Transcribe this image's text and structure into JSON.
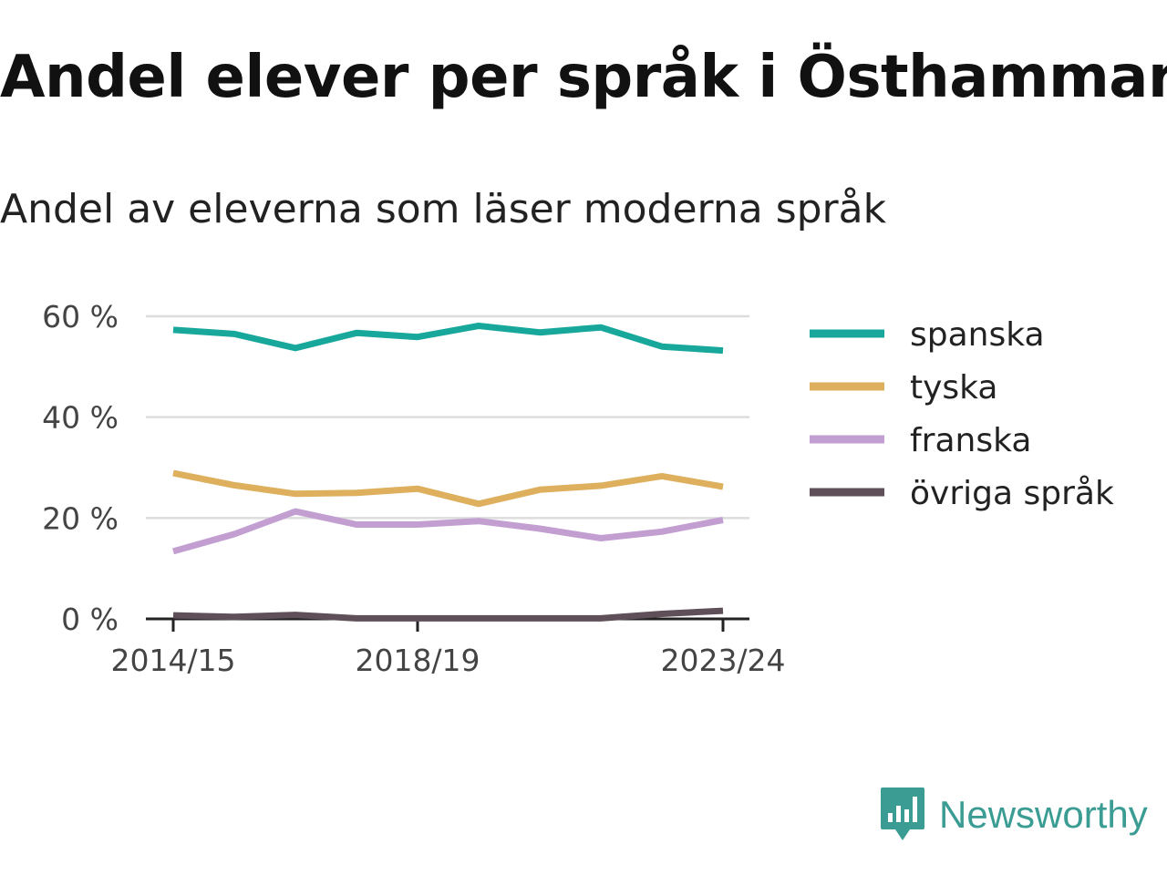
{
  "header": {
    "title": "Andel elever per språk i Östhammar",
    "subtitle": "Andel av eleverna som läser moderna språk"
  },
  "brand": {
    "name": "Newsworthy",
    "color": "#3a9c93",
    "icon": "newsworthy-logo-icon"
  },
  "chart_data": {
    "type": "line",
    "x": [
      "2014/15",
      "2015/16",
      "2016/17",
      "2017/18",
      "2018/19",
      "2019/20",
      "2020/21",
      "2021/22",
      "2022/23",
      "2023/24"
    ],
    "x_tick_labels": [
      "2014/15",
      "2018/19",
      "2023/24"
    ],
    "y_ticks": [
      0,
      20,
      40,
      60
    ],
    "y_tick_labels": [
      "0 %",
      "20 %",
      "40 %",
      "60 %"
    ],
    "ylim": [
      0,
      62
    ],
    "grid": true,
    "legend": "right",
    "series": [
      {
        "name": "spanska",
        "color": "#17a89b",
        "values": [
          57.3,
          56.5,
          53.7,
          56.7,
          55.9,
          58.1,
          56.8,
          57.8,
          54.0,
          53.2
        ]
      },
      {
        "name": "tyska",
        "color": "#deb05e",
        "values": [
          28.9,
          26.5,
          24.8,
          25.0,
          25.8,
          22.8,
          25.6,
          26.4,
          28.3,
          26.2
        ]
      },
      {
        "name": "franska",
        "color": "#c29ed1",
        "values": [
          13.4,
          16.8,
          21.3,
          18.7,
          18.7,
          19.4,
          17.9,
          16.0,
          17.3,
          19.6
        ]
      },
      {
        "name": "övriga språk",
        "color": "#5e4f58",
        "values": [
          0.7,
          0.4,
          0.8,
          0.1,
          0.1,
          0.1,
          0.1,
          0.1,
          1.0,
          1.6
        ]
      }
    ]
  }
}
